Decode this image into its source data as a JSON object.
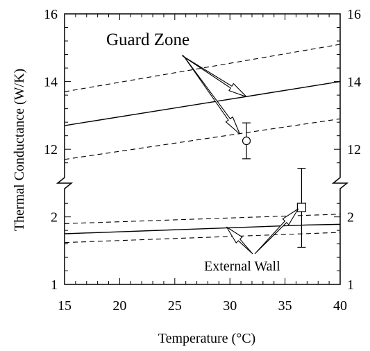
{
  "chart_data": {
    "type": "line",
    "xlabel": "Temperature (°C)",
    "ylabel": "Thermal Conductance (W/K)",
    "xlim": [
      15,
      40
    ],
    "x_ticks": [
      15,
      20,
      25,
      30,
      35,
      40
    ],
    "x_tick_labels": [
      "15",
      "20",
      "25",
      "30",
      "35",
      "40"
    ],
    "y_axis_broken": true,
    "y_segments": [
      {
        "range": [
          1,
          2.5
        ],
        "ticks": [
          1,
          2
        ],
        "tick_labels": [
          "1",
          "2"
        ]
      },
      {
        "range": [
          11,
          16
        ],
        "ticks": [
          12,
          14,
          16
        ],
        "tick_labels": [
          "12",
          "14",
          "16"
        ]
      }
    ],
    "series": [
      {
        "group": "guard-zone",
        "style": "solid",
        "x": [
          15,
          40
        ],
        "y": [
          12.7,
          14.0
        ]
      },
      {
        "group": "guard-zone",
        "style": "dashed",
        "x": [
          15,
          40
        ],
        "y": [
          13.7,
          15.1
        ]
      },
      {
        "group": "guard-zone",
        "style": "dashed",
        "x": [
          15,
          40
        ],
        "y": [
          11.7,
          12.9
        ]
      },
      {
        "group": "external-wall",
        "style": "solid",
        "x": [
          15,
          37,
          40
        ],
        "y": [
          1.75,
          1.88,
          1.89
        ]
      },
      {
        "group": "external-wall",
        "style": "dashed",
        "x": [
          15,
          40
        ],
        "y": [
          1.9,
          2.04
        ]
      },
      {
        "group": "external-wall",
        "style": "dashed",
        "x": [
          15,
          40
        ],
        "y": [
          1.62,
          1.77
        ]
      }
    ],
    "points": [
      {
        "group": "guard-zone",
        "marker": "circle",
        "x": 31.5,
        "y": 12.25,
        "y_err_low": 11.72,
        "y_err_high": 12.78
      },
      {
        "group": "external-wall",
        "marker": "square",
        "x": 36.5,
        "y": 2.14,
        "y_err_low": 1.55,
        "y_err_high": 2.72
      }
    ],
    "annotations": [
      {
        "text": "Guard Zone",
        "arrows_to": [
          {
            "x": 31.5,
            "y": 13.55
          },
          {
            "x": 30.9,
            "y": 12.45
          }
        ]
      },
      {
        "text": "External Wall",
        "arrows_to": [
          {
            "x": 29.7,
            "y": 1.85
          },
          {
            "x": 36.2,
            "y": 2.12
          }
        ]
      }
    ]
  }
}
